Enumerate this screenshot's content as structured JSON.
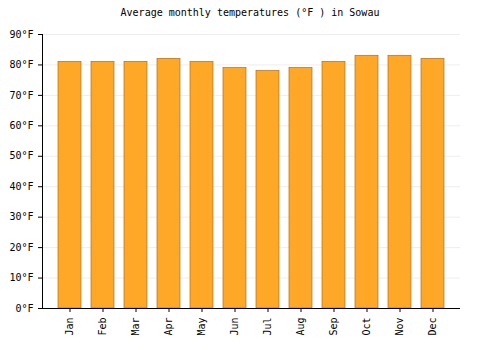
{
  "chart_data": {
    "type": "bar",
    "title": "Average monthly temperatures (°F ) in Sowau",
    "categories": [
      "Jan",
      "Feb",
      "Mar",
      "Apr",
      "May",
      "Jun",
      "Jul",
      "Aug",
      "Sep",
      "Oct",
      "Nov",
      "Dec"
    ],
    "values": [
      81,
      81,
      81,
      82,
      81,
      79,
      78,
      79,
      81,
      83,
      83,
      82
    ],
    "color": "#ffa726",
    "ylim": [
      0,
      90
    ],
    "yticks": [
      {
        "value": 0,
        "label": "0°F"
      },
      {
        "value": 10,
        "label": "10°F"
      },
      {
        "value": 20,
        "label": "20°F"
      },
      {
        "value": 30,
        "label": "30°F"
      },
      {
        "value": 40,
        "label": "40°F"
      },
      {
        "value": 50,
        "label": "50°F"
      },
      {
        "value": 60,
        "label": "60°F"
      },
      {
        "value": 70,
        "label": "70°F"
      },
      {
        "value": 80,
        "label": "80°F"
      },
      {
        "value": 90,
        "label": "90°F"
      }
    ],
    "grid": true
  }
}
